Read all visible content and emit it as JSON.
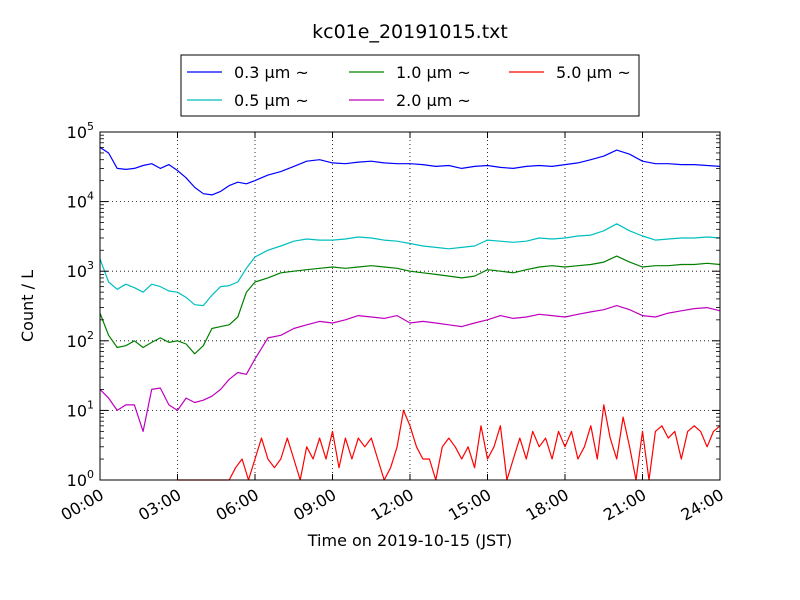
{
  "chart_data": {
    "type": "line",
    "title": "kc01e_20191015.txt",
    "xlabel": "Time on 2019-10-15 (JST)",
    "ylabel": "Count / L",
    "yscale": "log",
    "xlim": [
      "00:00",
      "24:00"
    ],
    "ylim": [
      1,
      100000
    ],
    "grid": true,
    "legend_position": "top-center",
    "x_ticks": [
      "00:00",
      "03:00",
      "06:00",
      "09:00",
      "12:00",
      "15:00",
      "18:00",
      "21:00",
      "24:00"
    ],
    "y_ticks": [
      {
        "value": 1,
        "mantissa": "10",
        "exp": "0"
      },
      {
        "value": 10,
        "mantissa": "10",
        "exp": "1"
      },
      {
        "value": 100,
        "mantissa": "10",
        "exp": "2"
      },
      {
        "value": 1000,
        "mantissa": "10",
        "exp": "3"
      },
      {
        "value": 10000,
        "mantissa": "10",
        "exp": "4"
      },
      {
        "value": 100000,
        "mantissa": "10",
        "exp": "5"
      }
    ],
    "series": [
      {
        "name": "0.3 μm ~",
        "color": "#0000ff",
        "x": [
          "00:00",
          "00:20",
          "00:40",
          "01:00",
          "01:20",
          "01:40",
          "02:00",
          "02:20",
          "02:40",
          "03:00",
          "03:20",
          "03:40",
          "04:00",
          "04:20",
          "04:40",
          "05:00",
          "05:20",
          "05:40",
          "06:00",
          "06:30",
          "07:00",
          "07:30",
          "08:00",
          "08:30",
          "09:00",
          "09:30",
          "10:00",
          "10:30",
          "11:00",
          "11:30",
          "12:00",
          "12:30",
          "13:00",
          "13:30",
          "14:00",
          "14:30",
          "15:00",
          "15:30",
          "16:00",
          "16:30",
          "17:00",
          "17:30",
          "18:00",
          "18:30",
          "19:00",
          "19:30",
          "20:00",
          "20:30",
          "21:00",
          "21:30",
          "22:00",
          "22:30",
          "23:00",
          "23:30",
          "24:00"
        ],
        "values": [
          60000,
          50000,
          30000,
          29000,
          30000,
          33000,
          35000,
          30000,
          34000,
          28000,
          22000,
          16000,
          13000,
          12500,
          14000,
          17000,
          19000,
          18000,
          20000,
          24000,
          27000,
          32000,
          38000,
          40000,
          36000,
          35000,
          37000,
          38000,
          36000,
          35000,
          35000,
          34000,
          32000,
          33000,
          30000,
          32000,
          33000,
          31000,
          30000,
          32000,
          33000,
          32000,
          34000,
          36000,
          40000,
          45000,
          55000,
          48000,
          38000,
          35000,
          35000,
          34000,
          34000,
          33000,
          32000
        ]
      },
      {
        "name": "0.5 μm ~",
        "color": "#00bfbf",
        "x": [
          "00:00",
          "00:20",
          "00:40",
          "01:00",
          "01:20",
          "01:40",
          "02:00",
          "02:20",
          "02:40",
          "03:00",
          "03:20",
          "03:40",
          "04:00",
          "04:20",
          "04:40",
          "05:00",
          "05:20",
          "05:40",
          "06:00",
          "06:30",
          "07:00",
          "07:30",
          "08:00",
          "08:30",
          "09:00",
          "09:30",
          "10:00",
          "10:30",
          "11:00",
          "11:30",
          "12:00",
          "12:30",
          "13:00",
          "13:30",
          "14:00",
          "14:30",
          "15:00",
          "15:30",
          "16:00",
          "16:30",
          "17:00",
          "17:30",
          "18:00",
          "18:30",
          "19:00",
          "19:30",
          "20:00",
          "20:30",
          "21:00",
          "21:30",
          "22:00",
          "22:30",
          "23:00",
          "23:30",
          "24:00"
        ],
        "values": [
          1500,
          700,
          550,
          650,
          580,
          500,
          650,
          600,
          520,
          500,
          420,
          330,
          320,
          450,
          600,
          620,
          700,
          1100,
          1600,
          2000,
          2300,
          2700,
          2900,
          2800,
          2800,
          2900,
          3100,
          3000,
          2800,
          2700,
          2500,
          2300,
          2200,
          2100,
          2200,
          2300,
          2800,
          2700,
          2600,
          2700,
          3000,
          2900,
          3000,
          3200,
          3300,
          3800,
          4800,
          3800,
          3200,
          2800,
          2900,
          3000,
          3000,
          3100,
          3000
        ]
      },
      {
        "name": "1.0 μm ~",
        "color": "#008000",
        "x": [
          "00:00",
          "00:20",
          "00:40",
          "01:00",
          "01:20",
          "01:40",
          "02:00",
          "02:20",
          "02:40",
          "03:00",
          "03:20",
          "03:40",
          "04:00",
          "04:20",
          "04:40",
          "05:00",
          "05:20",
          "05:40",
          "06:00",
          "06:30",
          "07:00",
          "07:30",
          "08:00",
          "08:30",
          "09:00",
          "09:30",
          "10:00",
          "10:30",
          "11:00",
          "11:30",
          "12:00",
          "12:30",
          "13:00",
          "13:30",
          "14:00",
          "14:30",
          "15:00",
          "15:30",
          "16:00",
          "16:30",
          "17:00",
          "17:30",
          "18:00",
          "18:30",
          "19:00",
          "19:30",
          "20:00",
          "20:30",
          "21:00",
          "21:30",
          "22:00",
          "22:30",
          "23:00",
          "23:30",
          "24:00"
        ],
        "values": [
          250,
          120,
          80,
          85,
          100,
          80,
          95,
          110,
          95,
          100,
          90,
          65,
          85,
          150,
          160,
          170,
          220,
          500,
          700,
          800,
          950,
          1000,
          1050,
          1100,
          1150,
          1100,
          1150,
          1200,
          1150,
          1100,
          1000,
          950,
          900,
          850,
          800,
          850,
          1050,
          1000,
          950,
          1050,
          1150,
          1200,
          1150,
          1200,
          1250,
          1350,
          1650,
          1350,
          1150,
          1200,
          1200,
          1250,
          1250,
          1300,
          1250
        ]
      },
      {
        "name": "2.0 μm ~",
        "color": "#bf00bf",
        "x": [
          "00:00",
          "00:20",
          "00:40",
          "01:00",
          "01:20",
          "01:40",
          "02:00",
          "02:20",
          "02:40",
          "03:00",
          "03:20",
          "03:40",
          "04:00",
          "04:20",
          "04:40",
          "05:00",
          "05:20",
          "05:40",
          "06:00",
          "06:30",
          "07:00",
          "07:30",
          "08:00",
          "08:30",
          "09:00",
          "09:30",
          "10:00",
          "10:30",
          "11:00",
          "11:30",
          "12:00",
          "12:30",
          "13:00",
          "13:30",
          "14:00",
          "14:30",
          "15:00",
          "15:30",
          "16:00",
          "16:30",
          "17:00",
          "17:30",
          "18:00",
          "18:30",
          "19:00",
          "19:30",
          "20:00",
          "20:30",
          "21:00",
          "21:30",
          "22:00",
          "22:30",
          "23:00",
          "23:30",
          "24:00"
        ],
        "values": [
          20,
          15,
          10,
          12,
          12,
          5,
          20,
          21,
          12,
          10,
          15,
          13,
          14,
          16,
          20,
          28,
          35,
          33,
          55,
          110,
          120,
          150,
          170,
          190,
          180,
          200,
          230,
          220,
          210,
          230,
          180,
          190,
          180,
          170,
          160,
          180,
          200,
          230,
          210,
          220,
          240,
          230,
          220,
          240,
          260,
          280,
          320,
          280,
          230,
          220,
          250,
          270,
          290,
          300,
          270
        ]
      },
      {
        "name": "5.0 μm ~",
        "color": "#ff0000",
        "x": [
          "03:00",
          "03:30",
          "04:00",
          "04:30",
          "05:00",
          "05:15",
          "05:30",
          "05:45",
          "06:00",
          "06:15",
          "06:30",
          "06:45",
          "07:00",
          "07:15",
          "07:30",
          "07:45",
          "08:00",
          "08:15",
          "08:30",
          "08:45",
          "09:00",
          "09:15",
          "09:30",
          "09:45",
          "10:00",
          "10:15",
          "10:30",
          "10:45",
          "11:00",
          "11:15",
          "11:30",
          "11:45",
          "12:00",
          "12:15",
          "12:30",
          "12:45",
          "13:00",
          "13:15",
          "13:30",
          "13:45",
          "14:00",
          "14:15",
          "14:30",
          "14:45",
          "15:00",
          "15:15",
          "15:30",
          "15:45",
          "16:00",
          "16:15",
          "16:30",
          "16:45",
          "17:00",
          "17:15",
          "17:30",
          "17:45",
          "18:00",
          "18:15",
          "18:30",
          "18:45",
          "19:00",
          "19:15",
          "19:30",
          "19:45",
          "20:00",
          "20:15",
          "20:30",
          "20:45",
          "21:00",
          "21:15",
          "21:30",
          "21:45",
          "22:00",
          "22:15",
          "22:30",
          "22:45",
          "23:00",
          "23:15",
          "23:30",
          "23:45",
          "24:00"
        ],
        "values": [
          1,
          1,
          1,
          1,
          1,
          1.5,
          2,
          1,
          2,
          4,
          2,
          1.5,
          2,
          4,
          2,
          1,
          3,
          2,
          4,
          2,
          5,
          1.5,
          4,
          2,
          4,
          3,
          4,
          2,
          1,
          1.5,
          3,
          10,
          6,
          3,
          2,
          2,
          1,
          3,
          4,
          3,
          2,
          3,
          1.5,
          6,
          2,
          3,
          6,
          1,
          2,
          4,
          2,
          5,
          3,
          4,
          2,
          5,
          3,
          5,
          2,
          3,
          6,
          2,
          12,
          4,
          2,
          8,
          3,
          1,
          5,
          1,
          5,
          6,
          4,
          5,
          2,
          5,
          6,
          5,
          3,
          5,
          6
        ]
      }
    ]
  }
}
